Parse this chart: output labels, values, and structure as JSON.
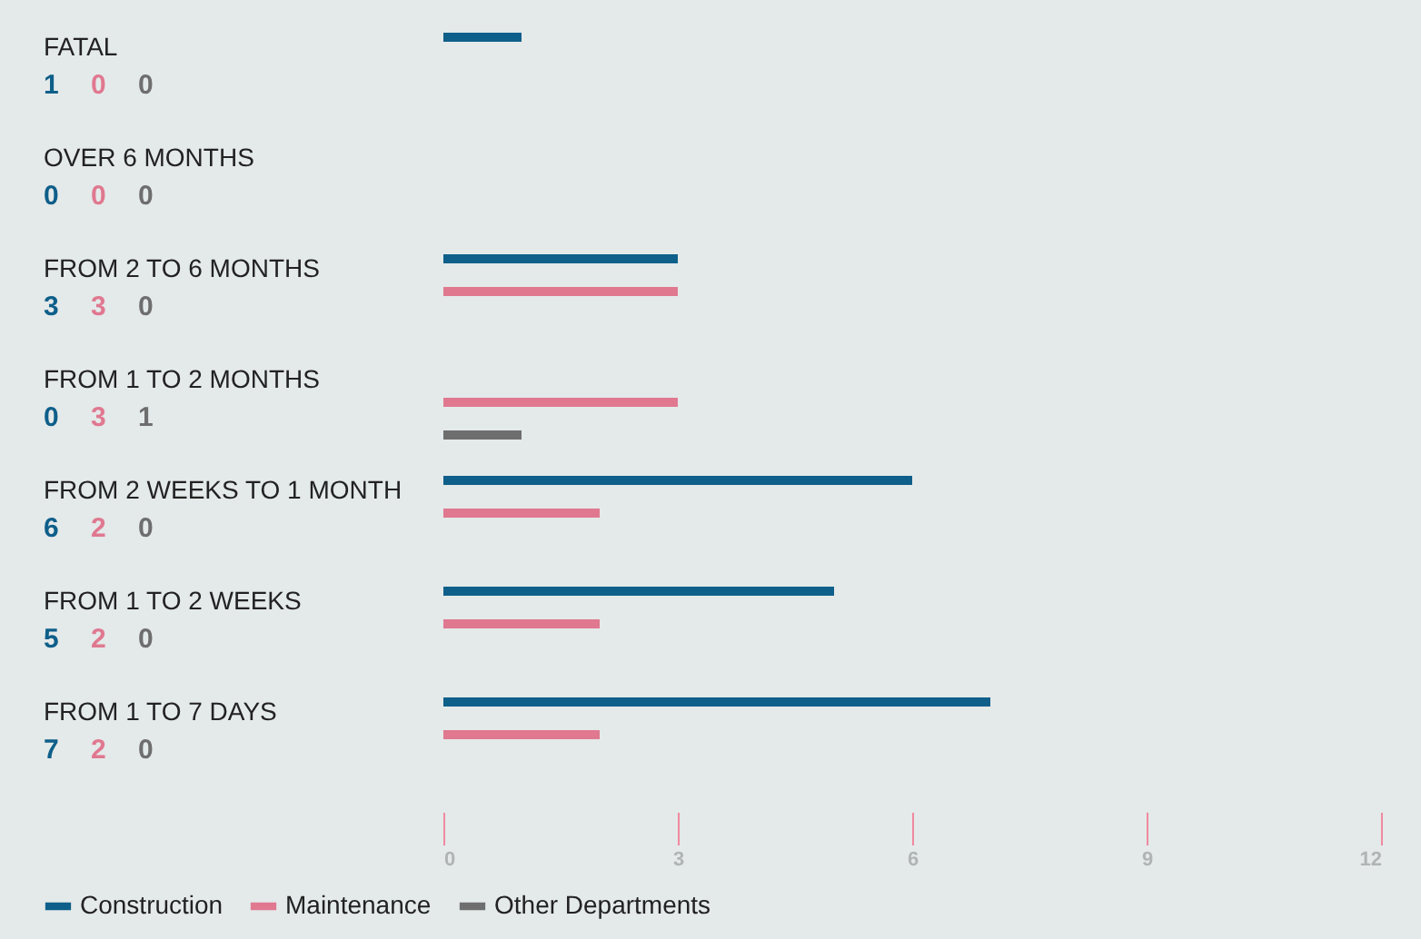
{
  "chart_data": {
    "type": "bar",
    "orientation": "horizontal",
    "categories": [
      "FATAL",
      "OVER 6 MONTHS",
      "FROM 2 TO 6 MONTHS",
      "FROM 1 TO 2 MONTHS",
      "FROM 2 WEEKS TO 1 MONTH",
      "FROM 1 TO 2 WEEKS",
      "FROM 1 TO 7 DAYS"
    ],
    "series": [
      {
        "name": "Construction",
        "color": "#0e5f8a",
        "values": [
          1,
          0,
          3,
          0,
          6,
          5,
          7
        ]
      },
      {
        "name": "Maintenance",
        "color": "#e07890",
        "values": [
          0,
          0,
          3,
          3,
          2,
          2,
          2
        ]
      },
      {
        "name": "Other Departments",
        "color": "#6e6e6e",
        "values": [
          0,
          0,
          0,
          1,
          0,
          0,
          0
        ]
      }
    ],
    "xlim": [
      0,
      12
    ],
    "xticks": [
      0,
      3,
      6,
      9,
      12
    ],
    "grid": false,
    "legend": "bottom left",
    "data_labels": true
  }
}
